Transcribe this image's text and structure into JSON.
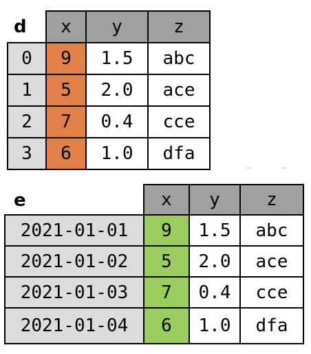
{
  "frames": [
    {
      "name": "d",
      "columns": [
        "x",
        "y",
        "z"
      ],
      "index": [
        "0",
        "1",
        "2",
        "3"
      ],
      "rows": [
        [
          "9",
          "1.5",
          "abc"
        ],
        [
          "5",
          "2.0",
          "ace"
        ],
        [
          "7",
          "0.4",
          "cce"
        ],
        [
          "6",
          "1.0",
          "dfa"
        ]
      ],
      "highlight_color": "#e2804a"
    },
    {
      "name": "e",
      "columns": [
        "x",
        "y",
        "z"
      ],
      "index": [
        "2021-01-01",
        "2021-01-02",
        "2021-01-03",
        "2021-01-04"
      ],
      "rows": [
        [
          "9",
          "1.5",
          "abc"
        ],
        [
          "5",
          "2.0",
          "ace"
        ],
        [
          "7",
          "0.4",
          "cce"
        ],
        [
          "6",
          "1.0",
          "dfa"
        ]
      ],
      "highlight_color": "#9acd5e"
    }
  ],
  "colors": {
    "header": "#a0a0a0",
    "index": "#dcdcdc",
    "cell": "#ffffff",
    "border": "#000000"
  }
}
